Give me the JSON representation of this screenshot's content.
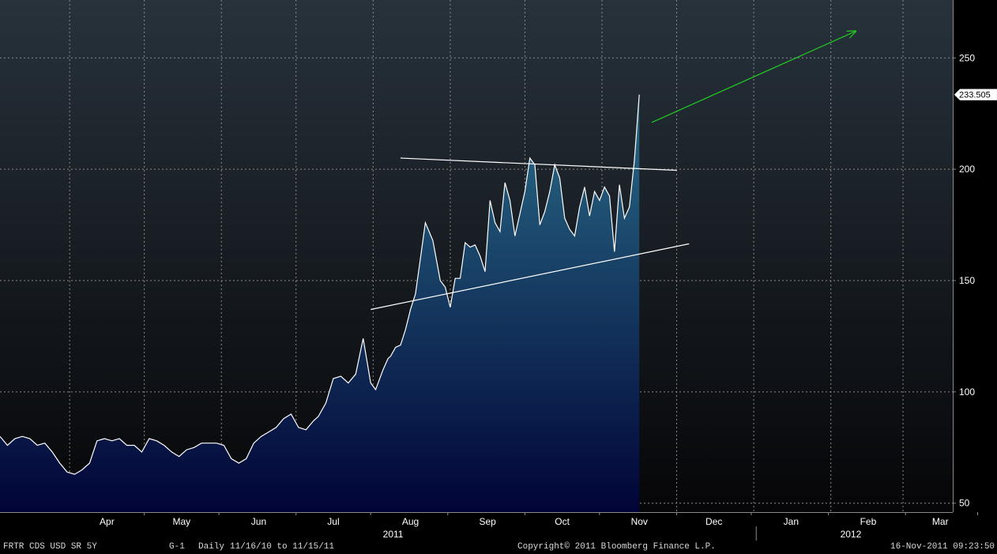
{
  "colors": {
    "background_top": "#27323b",
    "background_bottom": "#060608",
    "area_top": "#2a6e8a",
    "area_bottom": "#010436",
    "series_line": "#ffffff",
    "trend_lines": "#ffffff",
    "arrow": "#22cc22",
    "grid": "#8a8a8a",
    "axis_text": "#ffffff"
  },
  "chart_data": {
    "type": "area",
    "title": "",
    "xlabel": "",
    "ylabel": "",
    "frequency": "Daily",
    "x_range": [
      "2011-03-03",
      "2012-03-20"
    ],
    "ylim": [
      46,
      276
    ],
    "y_ticks": [
      50,
      100,
      150,
      200,
      250
    ],
    "y_tick_labels": [
      "50",
      "100",
      "150",
      "200",
      "250"
    ],
    "x_month_ticks": [
      "Apr",
      "May",
      "Jun",
      "Jul",
      "Aug",
      "Sep",
      "Oct",
      "Nov",
      "Dec",
      "Jan",
      "Feb",
      "Mar"
    ],
    "x_month_tick_dates": [
      "2011-04-15",
      "2011-05-15",
      "2011-06-15",
      "2011-07-15",
      "2011-08-15",
      "2011-09-15",
      "2011-10-15",
      "2011-11-15",
      "2011-12-15",
      "2012-01-15",
      "2012-02-15",
      "2012-03-15"
    ],
    "x_year_labels": [
      "2011",
      "2012"
    ],
    "x_year_label_dates": [
      "2011-08-15",
      "2012-02-15"
    ],
    "grid": true,
    "last_value_label": "233.505",
    "series": [
      {
        "x": [
          "2011-03-03",
          "2011-03-06",
          "2011-03-09",
          "2011-03-12",
          "2011-03-15",
          "2011-03-18",
          "2011-03-21",
          "2011-03-24",
          "2011-03-27",
          "2011-03-30",
          "2011-04-02",
          "2011-04-05",
          "2011-04-08",
          "2011-04-11",
          "2011-04-14",
          "2011-04-17",
          "2011-04-20",
          "2011-04-23",
          "2011-04-26",
          "2011-04-29",
          "2011-05-02",
          "2011-05-05",
          "2011-05-08",
          "2011-05-11",
          "2011-05-14",
          "2011-05-17",
          "2011-05-20",
          "2011-05-23",
          "2011-05-26",
          "2011-05-29",
          "2011-06-01",
          "2011-06-04",
          "2011-06-07",
          "2011-06-10",
          "2011-06-13",
          "2011-06-16",
          "2011-06-19",
          "2011-06-22",
          "2011-06-25",
          "2011-06-28",
          "2011-07-01",
          "2011-07-04",
          "2011-07-07",
          "2011-07-09",
          "2011-07-12",
          "2011-07-15",
          "2011-07-18",
          "2011-07-21",
          "2011-07-24",
          "2011-07-27",
          "2011-07-30",
          "2011-08-01",
          "2011-08-04",
          "2011-08-06",
          "2011-08-07",
          "2011-08-09",
          "2011-08-11",
          "2011-08-13",
          "2011-08-15",
          "2011-08-17",
          "2011-08-19",
          "2011-08-21",
          "2011-08-24",
          "2011-08-27",
          "2011-08-29",
          "2011-08-31",
          "2011-09-02",
          "2011-09-04",
          "2011-09-06",
          "2011-09-08",
          "2011-09-10",
          "2011-09-12",
          "2011-09-14",
          "2011-09-16",
          "2011-09-18",
          "2011-09-20",
          "2011-09-22",
          "2011-09-24",
          "2011-09-26",
          "2011-09-28",
          "2011-09-30",
          "2011-10-02",
          "2011-10-04",
          "2011-10-06",
          "2011-10-08",
          "2011-10-10",
          "2011-10-12",
          "2011-10-14",
          "2011-10-16",
          "2011-10-18",
          "2011-10-20",
          "2011-10-22",
          "2011-10-24",
          "2011-10-26",
          "2011-10-28",
          "2011-10-30",
          "2011-11-01",
          "2011-11-03",
          "2011-11-05",
          "2011-11-07",
          "2011-11-09",
          "2011-11-11",
          "2011-11-13",
          "2011-11-15"
        ],
        "y": [
          80,
          76,
          79,
          80,
          79,
          76,
          77,
          73,
          68,
          64,
          63,
          65,
          68,
          78,
          79,
          78,
          79,
          76,
          76,
          73,
          79,
          78,
          76,
          73,
          71,
          74,
          75,
          77,
          77,
          77,
          76,
          70,
          68,
          70,
          77,
          80,
          82,
          84,
          88,
          90,
          84,
          83,
          87,
          89,
          95,
          106,
          107,
          104,
          108,
          124,
          104,
          101,
          110,
          115,
          116,
          120,
          121,
          128,
          137,
          144,
          160,
          176,
          168,
          150,
          147,
          138,
          151,
          151,
          167,
          165,
          166,
          161,
          154,
          186,
          176,
          172,
          194,
          186,
          170,
          180,
          190,
          205,
          202,
          175,
          181,
          190,
          202,
          196,
          178,
          173,
          170,
          183,
          192,
          179,
          190,
          186,
          192,
          188,
          163,
          193,
          178,
          183,
          204,
          233.505
        ]
      }
    ],
    "annotations": [
      {
        "type": "resistance-line",
        "x": [
          "2011-08-11",
          "2011-11-30"
        ],
        "y": [
          205,
          199.5
        ]
      },
      {
        "type": "support-line",
        "x": [
          "2011-07-30",
          "2011-12-05"
        ],
        "y": [
          137,
          166.5
        ]
      },
      {
        "type": "up-arrow",
        "x": [
          "2011-11-20",
          "2012-02-10"
        ],
        "y": [
          221,
          262
        ]
      }
    ]
  },
  "footer": {
    "security": "FRTR CDS USD SR 5Y",
    "page": "G-1",
    "frequency": "Daily",
    "date_range": "11/16/10 to 11/15/11",
    "copyright": "Copyright© 2011 Bloomberg Finance L.P.",
    "timestamp": "16-Nov-2011 09:23:50"
  }
}
